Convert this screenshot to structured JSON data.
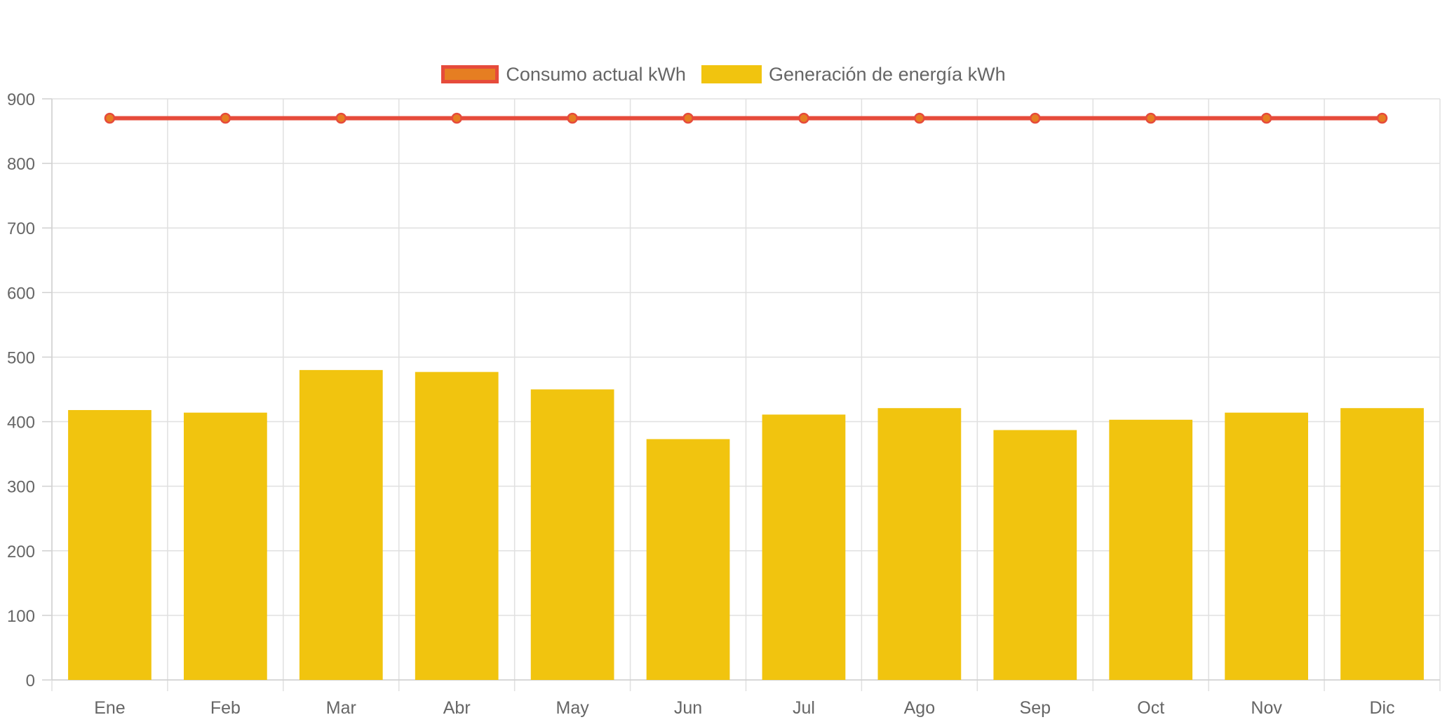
{
  "chart_data": {
    "type": "bar",
    "title": "",
    "xlabel": "",
    "ylabel": "",
    "categories": [
      "Ene",
      "Feb",
      "Mar",
      "Abr",
      "May",
      "Jun",
      "Jul",
      "Ago",
      "Sep",
      "Oct",
      "Nov",
      "Dic"
    ],
    "ylim": [
      0,
      900
    ],
    "yticks": [
      "0",
      "100",
      "200",
      "300",
      "400",
      "500",
      "600",
      "700",
      "800",
      "900"
    ],
    "grid": true,
    "legend_position": "top-center",
    "series": [
      {
        "name": "Consumo actual kWh",
        "type": "line",
        "color": "#e64b3b",
        "point_color": "#e67e22",
        "values": [
          870,
          870,
          870,
          870,
          870,
          870,
          870,
          870,
          870,
          870,
          870,
          870
        ]
      },
      {
        "name": "Generación de energía kWh",
        "type": "bar",
        "color": "#f1c40f",
        "values": [
          418,
          414,
          480,
          477,
          450,
          373,
          411,
          421,
          387,
          403,
          414,
          421
        ]
      }
    ]
  }
}
